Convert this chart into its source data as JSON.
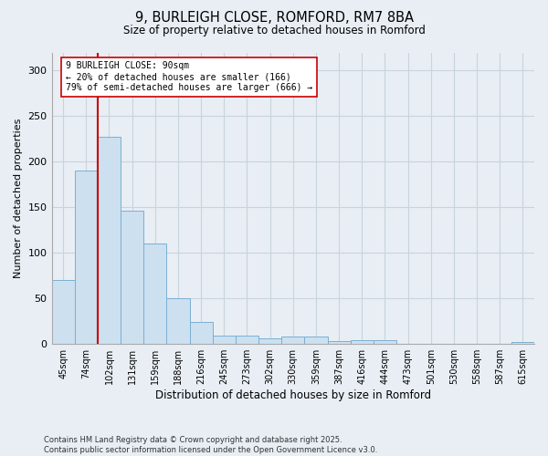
{
  "title_line1": "9, BURLEIGH CLOSE, ROMFORD, RM7 8BA",
  "title_line2": "Size of property relative to detached houses in Romford",
  "xlabel": "Distribution of detached houses by size in Romford",
  "ylabel": "Number of detached properties",
  "categories": [
    "45sqm",
    "74sqm",
    "102sqm",
    "131sqm",
    "159sqm",
    "188sqm",
    "216sqm",
    "245sqm",
    "273sqm",
    "302sqm",
    "330sqm",
    "359sqm",
    "387sqm",
    "416sqm",
    "444sqm",
    "473sqm",
    "501sqm",
    "530sqm",
    "558sqm",
    "587sqm",
    "615sqm"
  ],
  "values": [
    70,
    190,
    227,
    146,
    110,
    50,
    24,
    9,
    9,
    6,
    8,
    8,
    3,
    4,
    4,
    0,
    0,
    0,
    0,
    0,
    2
  ],
  "bar_color": "#cce0f0",
  "bar_edge_color": "#7ab0d4",
  "grid_color": "#c8d4dc",
  "annotation_text": "9 BURLEIGH CLOSE: 90sqm\n← 20% of detached houses are smaller (166)\n79% of semi-detached houses are larger (666) →",
  "vline_x_index": 1.5,
  "vline_color": "#cc0000",
  "annotation_box_edge": "#cc0000",
  "annotation_box_face": "#ffffff",
  "footer_line1": "Contains HM Land Registry data © Crown copyright and database right 2025.",
  "footer_line2": "Contains public sector information licensed under the Open Government Licence v3.0.",
  "ylim": [
    0,
    320
  ],
  "bg_color": "#e8eef4",
  "plot_bg_color": "#e8eef4",
  "title_fontsize": 10.5,
  "subtitle_fontsize": 8.5,
  "xlabel_fontsize": 8.5,
  "ylabel_fontsize": 8,
  "tick_fontsize": 7,
  "annotation_fontsize": 7,
  "footer_fontsize": 6
}
